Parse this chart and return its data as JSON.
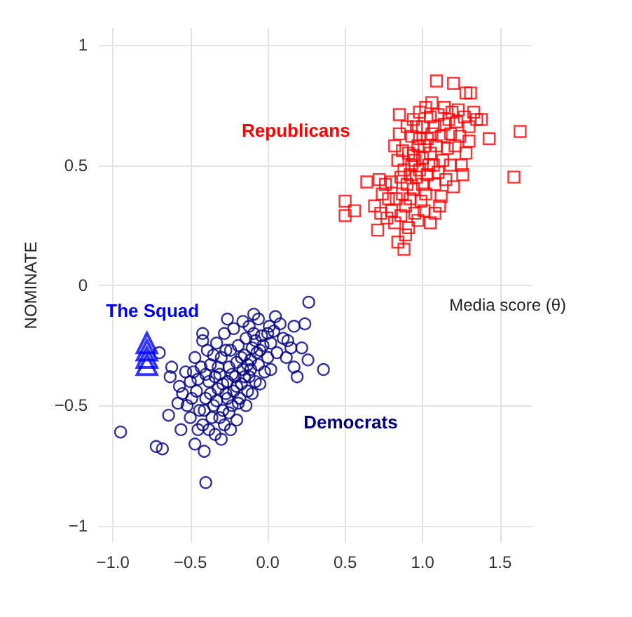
{
  "chart_data": {
    "type": "scatter",
    "xlabel": "Media score (θ)",
    "ylabel": "NOMINATE",
    "xlim": [
      -1.09,
      1.71
    ],
    "ylim": [
      -1.07,
      1.07
    ],
    "xticks": [
      {
        "value": -1,
        "label": "−1.0"
      },
      {
        "value": -0.5,
        "label": "−0.5"
      },
      {
        "value": 0,
        "label": "0.0"
      },
      {
        "value": 0.5,
        "label": "0.5"
      },
      {
        "value": 1,
        "label": "1.0"
      },
      {
        "value": 1.5,
        "label": "1.5"
      }
    ],
    "yticks": [
      {
        "value": -1,
        "label": "−1"
      },
      {
        "value": -0.5,
        "label": "−0.5"
      },
      0,
      0.5,
      1
    ],
    "grid": true,
    "legend": false,
    "series": [
      {
        "name": "Republicans",
        "color": "#ff0000",
        "marker": "square",
        "x": [
          1.09,
          1.2,
          1.28,
          1.31,
          1.38,
          1.43,
          1.63,
          1.59,
          0.85,
          0.85,
          0.5,
          0.5,
          0.56,
          0.64,
          0.69,
          0.71,
          0.84,
          0.88,
          0.91,
          0.97,
          1.05,
          1.08,
          1.12,
          1.2,
          1.25,
          0.72,
          0.76,
          0.8,
          0.73,
          0.77,
          0.8,
          0.82,
          0.86,
          0.83,
          0.87,
          0.89,
          0.92,
          0.9,
          0.94,
          0.96,
          0.93,
          0.88,
          0.84,
          0.82,
          0.87,
          0.91,
          0.95,
          0.98,
          1.0,
          1.02,
          1.03,
          1.0,
          0.97,
          0.93,
          0.9,
          0.94,
          0.98,
          1.0,
          1.03,
          1.05,
          1.07,
          1.1,
          1.08,
          1.13,
          1.16,
          1.12,
          1.08,
          1.05,
          1.02,
          1.06,
          1.1,
          1.14,
          1.18,
          1.21,
          1.24,
          1.22,
          1.19,
          1.23,
          1.27,
          1.3,
          1.33,
          1.35,
          1.28,
          1.26,
          1.18,
          1.15,
          1.11,
          0.99,
          0.95,
          0.78,
          0.74,
          0.98,
          1.01,
          0.96,
          1.04,
          1.06,
          0.92,
          0.86,
          1.14,
          1.3,
          1.01,
          0.89,
          0.94,
          1.09,
          1.17
        ],
        "values": [
          0.85,
          0.84,
          0.8,
          0.8,
          0.69,
          0.61,
          0.64,
          0.45,
          0.71,
          0.63,
          0.35,
          0.29,
          0.31,
          0.43,
          0.33,
          0.23,
          0.18,
          0.15,
          0.24,
          0.27,
          0.26,
          0.3,
          0.37,
          0.41,
          0.5,
          0.44,
          0.42,
          0.43,
          0.3,
          0.28,
          0.31,
          0.26,
          0.29,
          0.36,
          0.38,
          0.33,
          0.36,
          0.42,
          0.4,
          0.45,
          0.5,
          0.48,
          0.52,
          0.58,
          0.56,
          0.55,
          0.52,
          0.48,
          0.42,
          0.38,
          0.46,
          0.53,
          0.58,
          0.62,
          0.66,
          0.69,
          0.72,
          0.66,
          0.61,
          0.55,
          0.5,
          0.47,
          0.42,
          0.52,
          0.57,
          0.62,
          0.66,
          0.7,
          0.74,
          0.76,
          0.71,
          0.67,
          0.63,
          0.58,
          0.62,
          0.68,
          0.72,
          0.73,
          0.7,
          0.66,
          0.72,
          0.69,
          0.55,
          0.46,
          0.5,
          0.44,
          0.33,
          0.35,
          0.3,
          0.36,
          0.38,
          0.61,
          0.58,
          0.66,
          0.5,
          0.63,
          0.46,
          0.45,
          0.74,
          0.6,
          0.31,
          0.21,
          0.54,
          0.58,
          0.69
        ]
      },
      {
        "name": "Democrats",
        "color": "#000080",
        "marker": "circle",
        "x": [
          -0.95,
          -0.72,
          -0.68,
          -0.4,
          -0.41,
          -0.47,
          -0.56,
          -0.64,
          -0.62,
          -0.63,
          -0.7,
          0.265,
          0.24,
          0.36,
          0.19,
          0.17,
          0.26,
          -0.09,
          -0.42,
          -0.42,
          0.08,
          0.17,
          0.22,
          0.13,
          0.01,
          0.1,
          -0.55,
          -0.52,
          -0.5,
          -0.48,
          -0.46,
          -0.44,
          -0.42,
          -0.4,
          -0.38,
          -0.37,
          -0.36,
          -0.34,
          -0.33,
          -0.32,
          -0.31,
          -0.3,
          -0.29,
          -0.28,
          -0.27,
          -0.26,
          -0.25,
          -0.24,
          -0.23,
          -0.22,
          -0.21,
          -0.2,
          -0.19,
          -0.18,
          -0.17,
          -0.16,
          -0.15,
          -0.14,
          -0.13,
          -0.12,
          -0.11,
          -0.1,
          -0.09,
          -0.08,
          -0.06,
          -0.05,
          -0.04,
          -0.02,
          0.0,
          0.02,
          0.04,
          -0.35,
          -0.33,
          -0.28,
          -0.22,
          -0.16,
          -0.26,
          -0.2,
          -0.24,
          -0.3,
          -0.38,
          -0.45,
          -0.5,
          -0.58,
          -0.57,
          -0.53,
          -0.47,
          -0.43,
          -0.39,
          -0.41,
          -0.35,
          -0.31,
          -0.25,
          -0.19,
          -0.14,
          -0.1,
          -0.05,
          0.02,
          0.06,
          0.12,
          0.15,
          -0.12,
          -0.06,
          0.05,
          -0.45,
          -0.49,
          -0.37,
          -0.29,
          -0.23,
          -0.17,
          -0.13,
          -0.07,
          -0.03,
          -0.27,
          -0.32,
          -0.2,
          -0.15,
          -0.34,
          -0.4,
          -0.26,
          -0.11,
          -0.08,
          0.0
        ],
        "values": [
          -0.61,
          -0.67,
          -0.68,
          -0.82,
          -0.69,
          -0.66,
          -0.6,
          -0.54,
          -0.34,
          -0.38,
          -0.28,
          -0.07,
          -0.16,
          -0.35,
          -0.38,
          -0.34,
          -0.31,
          -0.12,
          -0.2,
          -0.23,
          -0.16,
          -0.17,
          -0.26,
          -0.23,
          -0.17,
          -0.22,
          -0.45,
          -0.5,
          -0.4,
          -0.36,
          -0.44,
          -0.52,
          -0.58,
          -0.47,
          -0.4,
          -0.33,
          -0.55,
          -0.62,
          -0.48,
          -0.43,
          -0.37,
          -0.3,
          -0.52,
          -0.58,
          -0.45,
          -0.4,
          -0.34,
          -0.27,
          -0.5,
          -0.44,
          -0.38,
          -0.32,
          -0.25,
          -0.47,
          -0.41,
          -0.35,
          -0.29,
          -0.22,
          -0.44,
          -0.38,
          -0.31,
          -0.26,
          -0.2,
          -0.4,
          -0.33,
          -0.27,
          -0.21,
          -0.36,
          -0.3,
          -0.24,
          -0.19,
          -0.29,
          -0.24,
          -0.2,
          -0.18,
          -0.15,
          -0.14,
          -0.56,
          -0.6,
          -0.64,
          -0.6,
          -0.6,
          -0.55,
          -0.49,
          -0.42,
          -0.36,
          -0.3,
          -0.34,
          -0.27,
          -0.52,
          -0.5,
          -0.55,
          -0.53,
          -0.49,
          -0.5,
          -0.45,
          -0.41,
          -0.35,
          -0.28,
          -0.3,
          -0.26,
          -0.17,
          -0.14,
          -0.13,
          -0.39,
          -0.47,
          -0.45,
          -0.41,
          -0.37,
          -0.3,
          -0.33,
          -0.28,
          -0.25,
          -0.27,
          -0.34,
          -0.42,
          -0.38,
          -0.38,
          -0.37,
          -0.47,
          -0.35,
          -0.23,
          -0.2
        ]
      },
      {
        "name": "The Squad",
        "color": "#0000ff",
        "marker": "triangle",
        "x": [
          -0.78,
          -0.78,
          -0.78,
          -0.78
        ],
        "values": [
          -0.24,
          -0.27,
          -0.3,
          -0.33
        ]
      }
    ]
  }
}
